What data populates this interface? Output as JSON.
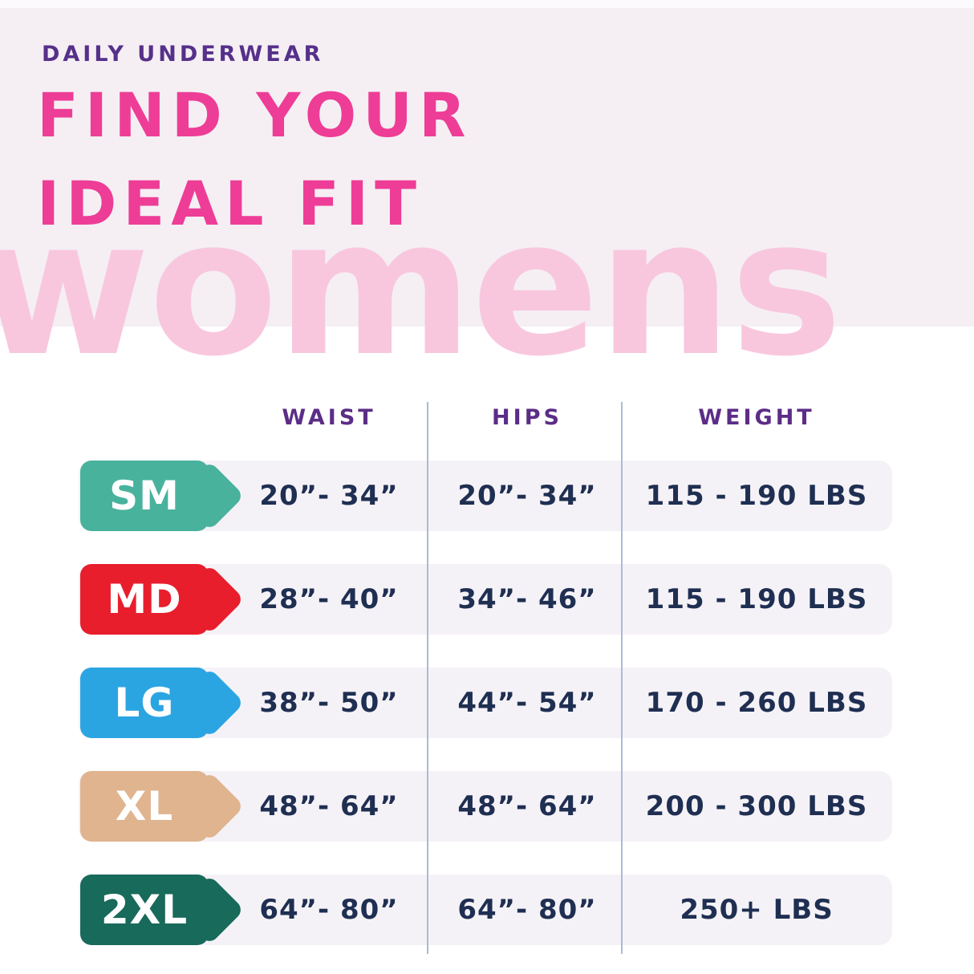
{
  "header": {
    "eyebrow": "DAILY UNDERWEAR",
    "title_line1": "FIND YOUR",
    "title_line2": "IDEAL FIT",
    "watermark": "womens"
  },
  "colors": {
    "eyebrow_purple": "#56308a",
    "title_pink": "#ee3d96",
    "watermark_pink": "#f8c7de",
    "header_background": "#f5eff4",
    "column_header_purple": "#5c2d87",
    "value_navy": "#1f2f52",
    "row_background": "#f5f2f7",
    "divider_blue": "#a9bbd6"
  },
  "table": {
    "columns": [
      "WAIST",
      "HIPS",
      "WEIGHT"
    ],
    "rows": [
      {
        "size": "SM",
        "color": "#49b29d",
        "waist": "20”- 34”",
        "hips": "20”- 34”",
        "weight": "115 - 190 LBS"
      },
      {
        "size": "MD",
        "color": "#e81e2d",
        "waist": "28”- 40”",
        "hips": "34”- 46”",
        "weight": "115 - 190 LBS"
      },
      {
        "size": "LG",
        "color": "#2ba5e2",
        "waist": "38”- 50”",
        "hips": "44”- 54”",
        "weight": "170 - 260 LBS"
      },
      {
        "size": "XL",
        "color": "#dfb48f",
        "waist": "48”- 64”",
        "hips": "48”- 64”",
        "weight": "200 - 300 LBS"
      },
      {
        "size": "2XL",
        "color": "#186a5b",
        "waist": "64”- 80”",
        "hips": "64”- 80”",
        "weight": "250+ LBS"
      }
    ]
  }
}
